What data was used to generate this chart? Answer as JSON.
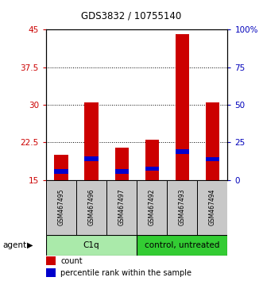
{
  "title": "GDS3832 / 10755140",
  "samples": [
    "GSM467495",
    "GSM467496",
    "GSM467497",
    "GSM467492",
    "GSM467493",
    "GSM467494"
  ],
  "count_values": [
    20.0,
    30.5,
    21.5,
    23.0,
    44.0,
    30.5
  ],
  "blue_bottom": [
    16.2,
    18.8,
    16.2,
    16.8,
    20.2,
    18.7
  ],
  "blue_height": [
    0.9,
    0.9,
    0.9,
    0.9,
    0.9,
    0.9
  ],
  "bar_bottom": 15.0,
  "ylim": [
    15,
    45
  ],
  "yticks_left": [
    15,
    22.5,
    30,
    37.5,
    45
  ],
  "yticks_right_labels": [
    "0",
    "25",
    "50",
    "75",
    "100%"
  ],
  "group_spans": [
    {
      "start": 0,
      "end": 2,
      "label": "C1q",
      "color": "#b8f4b8"
    },
    {
      "start": 3,
      "end": 5,
      "label": "control, untreated",
      "color": "#44dd44"
    }
  ],
  "agent_label": "agent",
  "bar_color_red": "#cc0000",
  "bar_color_blue": "#0000cc",
  "axis_color_left": "#cc0000",
  "axis_color_right": "#0000bb",
  "sample_box_color": "#c8c8c8",
  "c1q_color": "#aaeaaa",
  "control_color": "#33cc33",
  "legend_red_label": "count",
  "legend_blue_label": "percentile rank within the sample"
}
